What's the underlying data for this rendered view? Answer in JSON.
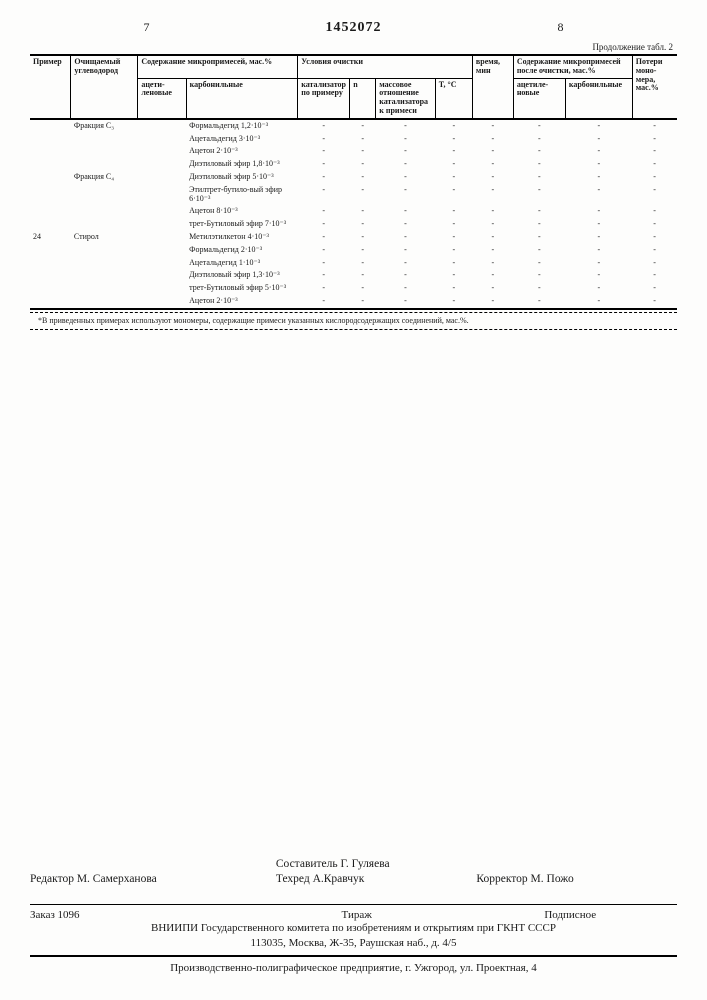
{
  "header": {
    "page_left": "7",
    "patent_no": "1452072",
    "page_right": "8",
    "continuation": "Продолжение табл. 2"
  },
  "table": {
    "columns": {
      "c1": "Пример",
      "c2": "Очищаемый углеводород",
      "c3_group": "Содержание микропримесей, мас.%",
      "c3a": "ацети-леновые",
      "c3b": "карбонильные",
      "c4_group": "Условия очистки",
      "c4a": "катализатор по примеру",
      "c4b": "n",
      "c4c": "массовое отношение катализатора к примеси",
      "c4d": "T, °C",
      "c5": "время, мин",
      "c6_group": "Содержание микропримесей после очистки, мас.%",
      "c6a": "ацетиле-новые",
      "c6b": "карбонильные",
      "c7": "Потери моно-мера, мас.%"
    },
    "rows": [
      {
        "ex": "",
        "hc": "Фракция C₃",
        "b": "Формальдегид 1,2·10⁻³"
      },
      {
        "ex": "",
        "hc": "",
        "b": "Ацетальдегид 3·10⁻³"
      },
      {
        "ex": "",
        "hc": "",
        "b": "Ацетон 2·10⁻³"
      },
      {
        "ex": "",
        "hc": "",
        "b": "Диэтиловый эфир 1,8·10⁻³"
      },
      {
        "ex": "",
        "hc": "Фракция C₄",
        "b": "Диэтиловый эфир 5·10⁻³"
      },
      {
        "ex": "",
        "hc": "",
        "b": "Этилтрет-бутило-вый эфир 6·10⁻³"
      },
      {
        "ex": "",
        "hc": "",
        "b": "Ацетон 8·10⁻³"
      },
      {
        "ex": "",
        "hc": "",
        "b": "трет-Бутиловый эфир 7·10⁻³"
      },
      {
        "ex": "24",
        "hc": "Стирол",
        "b": "Метилэтилкетон 4·10⁻³"
      },
      {
        "ex": "",
        "hc": "",
        "b": "Формальдегид 2·10⁻³"
      },
      {
        "ex": "",
        "hc": "",
        "b": "Ацетальдегид 1·10⁻³"
      },
      {
        "ex": "",
        "hc": "",
        "b": "Диэтиловый эфир 1,3·10⁻³"
      },
      {
        "ex": "",
        "hc": "",
        "b": "трет-Бутиловый эфир 5·10⁻³"
      },
      {
        "ex": "",
        "hc": "",
        "b": "Ацетон 2·10⁻³"
      }
    ],
    "footnote": "*В приведенных примерах используют мономеры, содержащие примеси указанных кислородсодержащих соединений, мас.%."
  },
  "credits": {
    "compiler": "Составитель Г. Гуляева",
    "editor": "Редактор М. Самерханова",
    "tech": "Техред А.Кравчук",
    "corrector": "Корректор М. Пожо",
    "order": "Заказ 1096",
    "tirage": "Тираж",
    "subscr": "Подписное",
    "inst1": "ВНИИПИ Государственного комитета по изобретениям и открытиям при ГКНТ СССР",
    "inst2": "113035, Москва, Ж-35, Раушская наб., д. 4/5",
    "print": "Производственно-полиграфическое предприятие, г. Ужгород, ул. Проектная, 4"
  }
}
